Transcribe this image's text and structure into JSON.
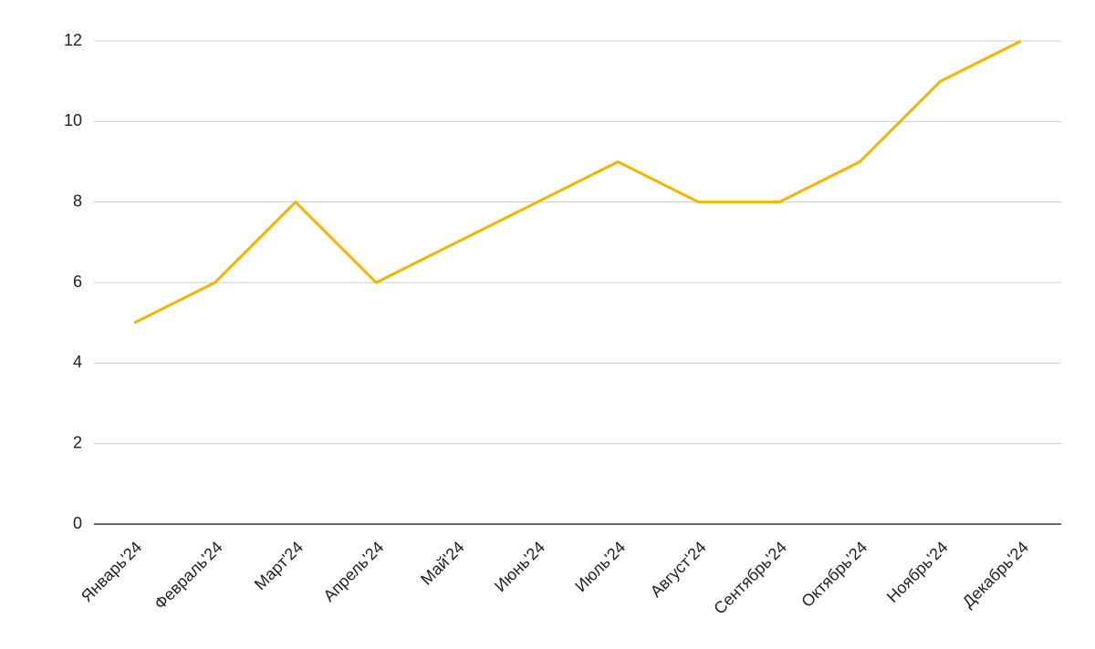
{
  "chart_data": {
    "type": "line",
    "categories": [
      "Январь'24",
      "Февраль'24",
      "Март'24",
      "Апрель'24",
      "Май'24",
      "Июнь'24",
      "Июль'24",
      "Август'24",
      "Сентябрь'24",
      "Октябрь'24",
      "Ноябрь'24",
      "Декабрь'24"
    ],
    "values": [
      5,
      6,
      8,
      6,
      7,
      8,
      9,
      8,
      8,
      9,
      11,
      12
    ],
    "color": "#f4b400",
    "ylim": [
      0,
      12
    ],
    "yticks": [
      0,
      2,
      4,
      6,
      8,
      10,
      12
    ],
    "grid": true
  }
}
